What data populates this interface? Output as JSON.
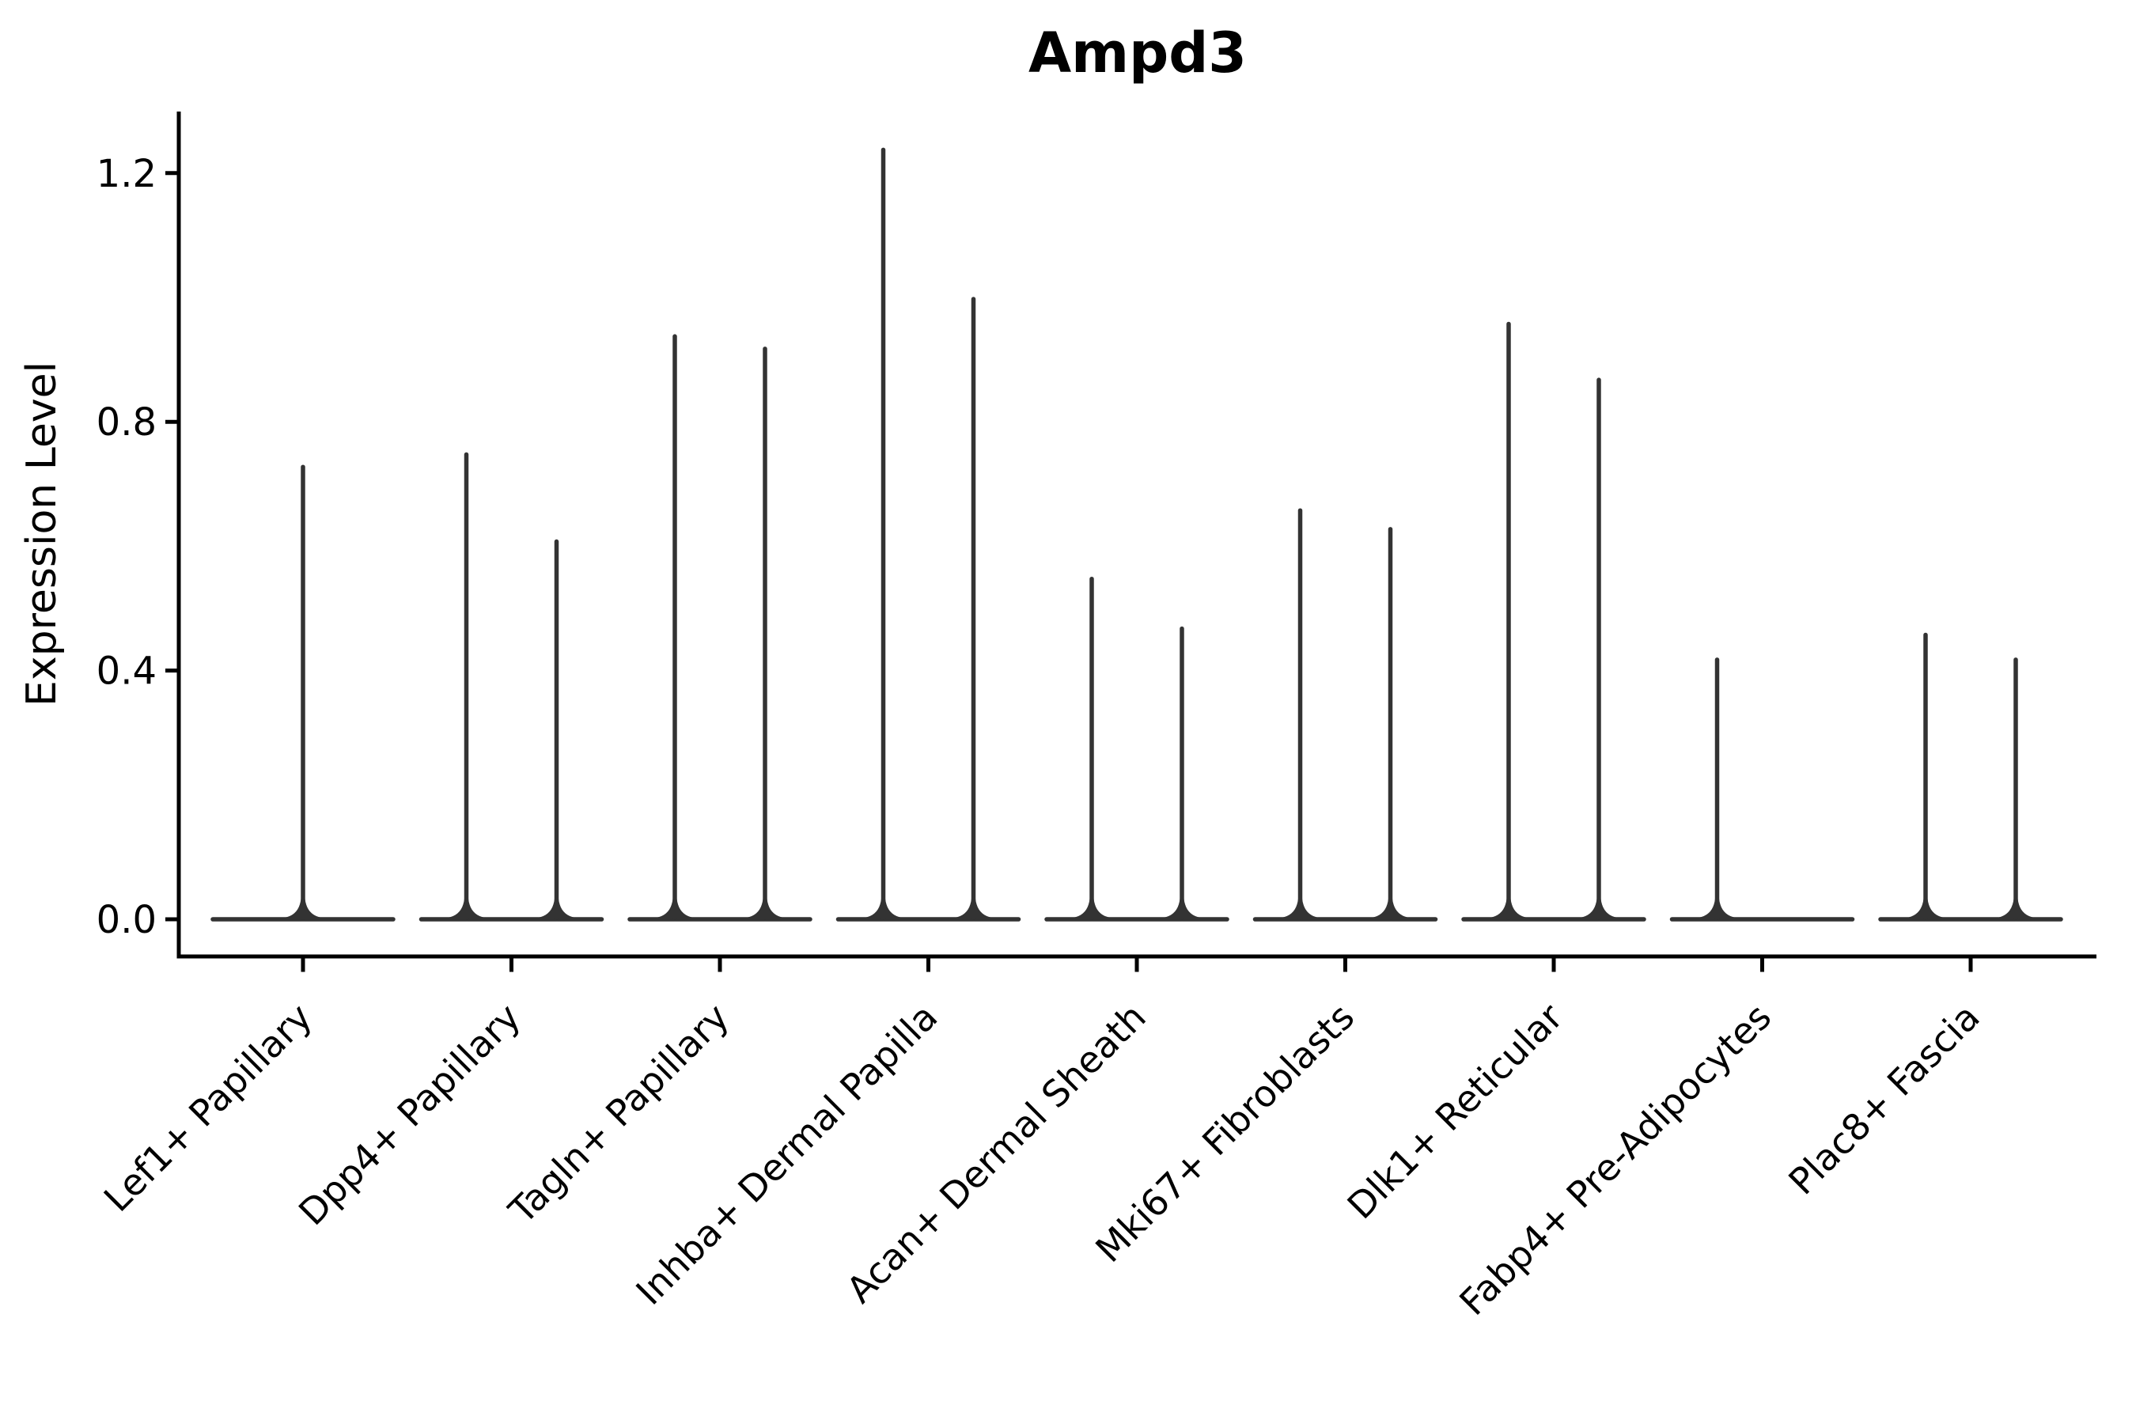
{
  "chart_data": {
    "type": "violin",
    "title": "Ampd3",
    "ylabel": "Expression Level",
    "xlabel": "",
    "yticks": [
      0.0,
      0.4,
      0.8,
      1.2
    ],
    "ylim": [
      -0.06,
      1.3
    ],
    "grid": false,
    "legend": "none",
    "x_tick_rotation_deg": 45,
    "categories": [
      "Lef1+ Papillary",
      "Dpp4+ Papillary",
      "Tagln+ Papillary",
      "Inhba+ Dermal Papilla",
      "Acan+ Dermal Sheath",
      "Mki67+ Fibroblasts",
      "Dlk1+ Reticular",
      "Fabp4+ Pre-Adipocytes",
      "Plac8+ Fascia"
    ],
    "violins": [
      {
        "category": "Lef1+ Papillary",
        "split": false,
        "max_expression": [
          0.73
        ]
      },
      {
        "category": "Dpp4+ Papillary",
        "split": true,
        "max_expression": [
          0.75,
          0.61
        ]
      },
      {
        "category": "Tagln+ Papillary",
        "split": true,
        "max_expression": [
          0.94,
          0.92
        ]
      },
      {
        "category": "Inhba+ Dermal Papilla",
        "split": true,
        "max_expression": [
          1.24,
          1.0
        ]
      },
      {
        "category": "Acan+ Dermal Sheath",
        "split": true,
        "max_expression": [
          0.55,
          0.47
        ]
      },
      {
        "category": "Mki67+ Fibroblasts",
        "split": true,
        "max_expression": [
          0.66,
          0.63
        ]
      },
      {
        "category": "Dlk1+ Reticular",
        "split": true,
        "max_expression": [
          0.96,
          0.87
        ]
      },
      {
        "category": "Fabp4+ Pre-Adipocytes",
        "split": true,
        "max_expression": [
          0.42,
          0.0
        ]
      },
      {
        "category": "Plac8+ Fascia",
        "split": true,
        "max_expression": [
          0.46,
          0.42
        ]
      }
    ],
    "baseline_value": 0.0,
    "shape_note": "Each violin is flat and wide at expression 0 with a thin vertical spike rising to its maximum expression value",
    "colors": {
      "violin": "#333333",
      "axis": "#000000",
      "text": "#000000",
      "background": "#ffffff"
    }
  }
}
